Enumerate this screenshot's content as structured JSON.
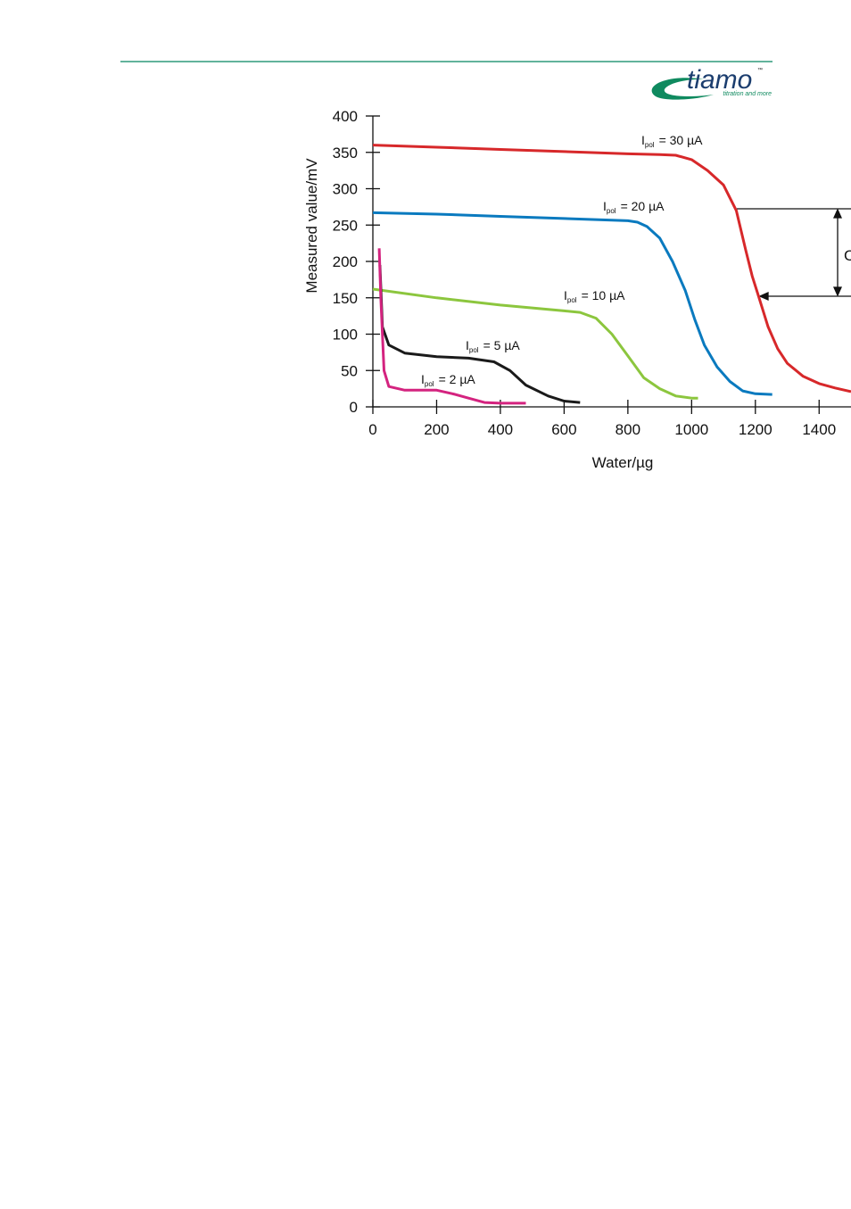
{
  "header": {
    "logo": "tiamo",
    "trademark": "™",
    "tagline": "titration and more"
  },
  "chart_data": {
    "type": "line",
    "x_label": "Water/µg",
    "y_label": "Measured value/mV",
    "xlim": [
      0,
      1500
    ],
    "ylim": [
      0,
      400
    ],
    "xticks": [
      0,
      200,
      400,
      600,
      800,
      1000,
      1200,
      1400
    ],
    "yticks": [
      0,
      50,
      100,
      150,
      200,
      250,
      300,
      350,
      400
    ],
    "annotation": "C",
    "series": [
      {
        "name": "I",
        "subscript": "pol",
        "suffix": "= 30 µA",
        "color": "#d7282a",
        "x": [
          0,
          200,
          400,
          600,
          800,
          900,
          950,
          1000,
          1050,
          1100,
          1140,
          1170,
          1190,
          1210,
          1240,
          1270,
          1300,
          1350,
          1400,
          1450,
          1500
        ],
        "values": [
          360,
          357,
          354,
          351,
          348,
          347,
          346,
          340,
          325,
          305,
          270,
          215,
          180,
          152,
          110,
          80,
          60,
          42,
          32,
          26,
          21
        ]
      },
      {
        "name": "I",
        "subscript": "pol",
        "suffix": "= 20 µA",
        "color": "#0a7abf",
        "x": [
          0,
          200,
          400,
          600,
          800,
          830,
          860,
          900,
          940,
          980,
          1010,
          1040,
          1080,
          1120,
          1160,
          1200,
          1253
        ],
        "values": [
          267,
          265,
          262,
          259,
          256,
          254,
          248,
          232,
          200,
          160,
          120,
          85,
          55,
          35,
          22,
          18,
          17
        ]
      },
      {
        "name": "I",
        "subscript": "pol",
        "suffix": "= 10 µA",
        "color": "#8cc63e",
        "x": [
          0,
          200,
          400,
          600,
          650,
          700,
          750,
          800,
          850,
          900,
          950,
          1000,
          1020
        ],
        "values": [
          162,
          150,
          140,
          132,
          130,
          122,
          100,
          70,
          40,
          25,
          15,
          12,
          12
        ]
      },
      {
        "name": "I",
        "subscript": "pol",
        "suffix": "= 5 µA",
        "color": "#1a1a1a",
        "x": [
          22,
          30,
          50,
          100,
          200,
          300,
          380,
          430,
          480,
          550,
          600,
          650
        ],
        "values": [
          195,
          110,
          85,
          74,
          69,
          67,
          62,
          50,
          30,
          15,
          8,
          6
        ]
      },
      {
        "name": "I",
        "subscript": "pol",
        "suffix": "= 2 µA",
        "color": "#d4237f",
        "x": [
          20,
          25,
          35,
          50,
          100,
          200,
          250,
          300,
          350,
          400,
          480
        ],
        "values": [
          218,
          150,
          50,
          28,
          23,
          23,
          18,
          12,
          6,
          5,
          5
        ]
      }
    ]
  }
}
